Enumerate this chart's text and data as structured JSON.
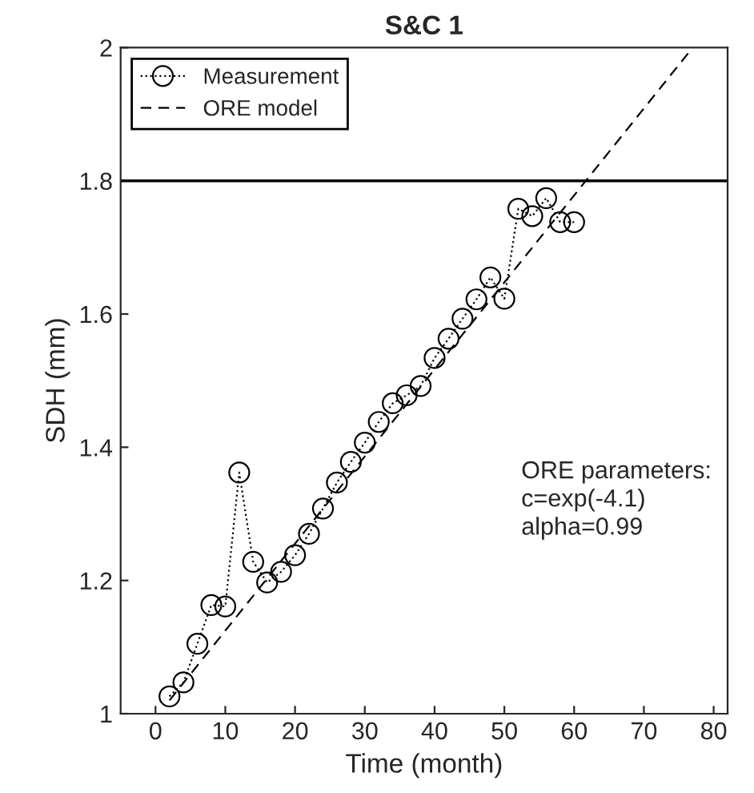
{
  "chart_data": {
    "type": "line",
    "title": "S&C 1",
    "xlabel": "Time (month)",
    "ylabel": "SDH (mm)",
    "series": [
      {
        "name": "Measurement",
        "color": "#000000",
        "marker": "circle",
        "line_style": "dotted",
        "x": [
          2,
          4,
          6,
          8,
          10,
          12,
          14,
          16,
          18,
          20,
          22,
          24,
          26,
          28,
          30,
          32,
          34,
          36,
          38,
          40,
          42,
          44,
          46,
          48,
          50,
          52,
          54,
          56,
          58,
          60
        ],
        "values": [
          1.026,
          1.047,
          1.105,
          1.163,
          1.161,
          1.362,
          1.228,
          1.197,
          1.213,
          1.238,
          1.27,
          1.308,
          1.347,
          1.378,
          1.407,
          1.438,
          1.466,
          1.478,
          1.492,
          1.534,
          1.563,
          1.593,
          1.622,
          1.655,
          1.623,
          1.758,
          1.747,
          1.774,
          1.738,
          1.738
        ]
      },
      {
        "name": "ORE model",
        "color": "#000000",
        "marker": "none",
        "line_style": "dashed",
        "x": [
          2,
          40,
          77
        ],
        "values": [
          1.02,
          1.517,
          2.0
        ]
      }
    ],
    "ref_lines": [
      {
        "axis": "y",
        "value": 1.8,
        "color": "#000000",
        "line_style": "solid"
      }
    ],
    "annotations": [
      {
        "text": "ORE parameters:\nc=exp(-4.1)\nalpha=0.99"
      }
    ],
    "xlim": [
      -5,
      82
    ],
    "xticks": [
      0,
      10,
      20,
      30,
      40,
      50,
      60,
      70,
      80
    ],
    "ylim": [
      1,
      2
    ],
    "yticks": [
      1,
      1.2,
      1.4,
      1.6,
      1.8,
      2
    ],
    "grid": false,
    "legend": "top left"
  }
}
